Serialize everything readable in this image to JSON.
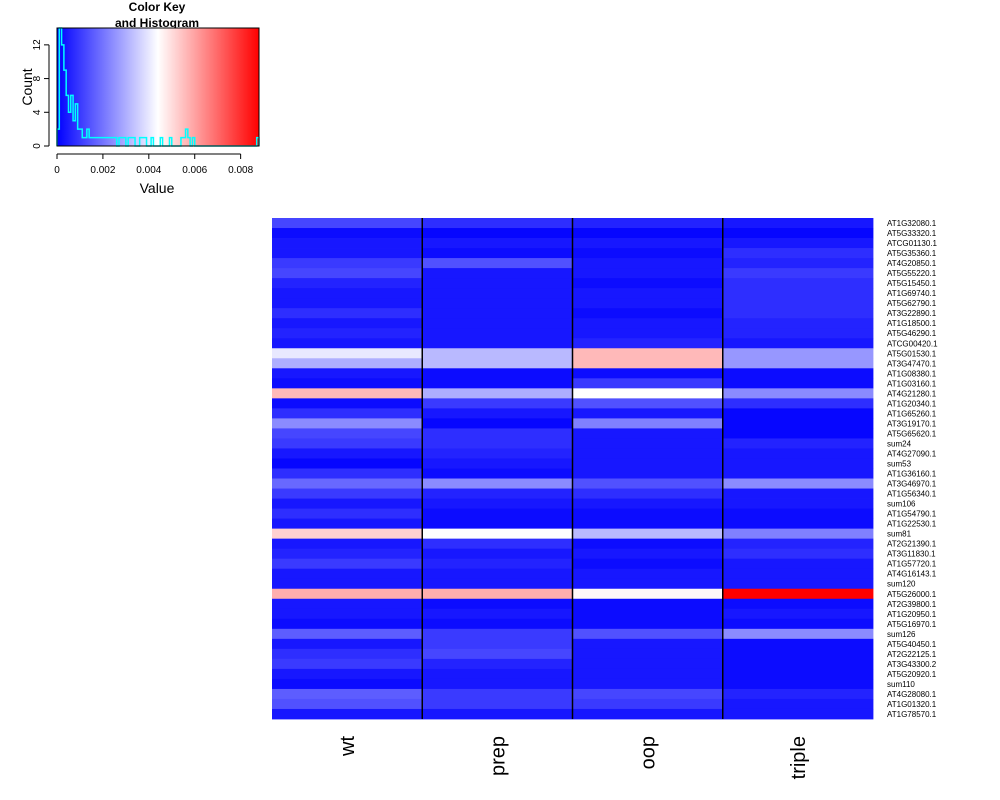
{
  "chart_data": {
    "type": "heatmap",
    "key": {
      "title_lines": [
        "Color Key",
        "and Histogram"
      ],
      "xlabel": "Value",
      "ylabel": "Count",
      "x_range": [
        0,
        0.0088
      ],
      "x_ticks": [
        0,
        0.002,
        0.004,
        0.006,
        0.008
      ],
      "x_tick_labels": [
        "0",
        "0.002",
        "0.004",
        "0.006",
        "0.008"
      ],
      "y_range": [
        0,
        14
      ],
      "y_ticks": [
        0,
        4,
        8,
        12
      ],
      "y_tick_labels": [
        "0",
        "4",
        "8",
        "12"
      ],
      "color_low": "#0000ff",
      "color_mid": "#ffffff",
      "color_high": "#ff0000",
      "histogram_color": "#00ffff",
      "histogram_heights": [
        2,
        14,
        12,
        9,
        6,
        4,
        6,
        3,
        5,
        2,
        2,
        1,
        1,
        2,
        1,
        1,
        1,
        1,
        1,
        1,
        1,
        1,
        1,
        1,
        1,
        1,
        0,
        1,
        1,
        1,
        0,
        1,
        1,
        1,
        0,
        0,
        1,
        1,
        1,
        0,
        0,
        1,
        0,
        0,
        0,
        1,
        0,
        0,
        0,
        1,
        0,
        0,
        0,
        0,
        1,
        1,
        2,
        1,
        0,
        1,
        0,
        0,
        0,
        0,
        0,
        0,
        0,
        0,
        0,
        0,
        0,
        0,
        0,
        0,
        0,
        0,
        0,
        0,
        0,
        0,
        0,
        0,
        0,
        0,
        0,
        0,
        0,
        1
      ]
    },
    "columns": [
      "wt",
      "prep",
      "oop",
      "triple"
    ],
    "rows": [
      "AT1G32080.1",
      "AT5G33320.1",
      "ATCG01130.1",
      "AT5G35360.1",
      "AT4G20850.1",
      "AT5G55220.1",
      "AT5G15450.1",
      "AT1G69740.1",
      "AT5G62790.1",
      "AT3G22890.1",
      "AT1G18500.1",
      "AT5G46290.1",
      "ATCG00420.1",
      "AT5G01530.1",
      "AT3G47470.1",
      "AT1G08380.1",
      "AT1G03160.1",
      "AT4G21280.1",
      "AT1G20340.1",
      "AT1G65260.1",
      "AT3G19170.1",
      "AT5G65620.1",
      "sum24",
      "AT4G27090.1",
      "sum53",
      "AT1G36160.1",
      "AT3G46970.1",
      "AT1G56340.1",
      "sum106",
      "AT1G54790.1",
      "AT1G22530.1",
      "sum81",
      "AT2G21390.1",
      "AT3G11830.1",
      "AT1G57720.1",
      "AT4G16143.1",
      "sum120",
      "AT5G26000.1",
      "AT2G39800.1",
      "AT1G20950.1",
      "AT5G16970.1",
      "sum126",
      "AT5G40450.1",
      "AT2G22125.1",
      "AT3G43300.2",
      "AT5G20920.1",
      "sum110",
      "AT4G28080.1",
      "AT1G01320.1",
      "AT1G78570.1"
    ],
    "value_range": [
      0,
      0.0088
    ],
    "values": [
      [
        0.0012,
        0.0008,
        0.0006,
        0.0004
      ],
      [
        0.0002,
        0.0001,
        0.0001,
        0.0001
      ],
      [
        0.0004,
        0.0004,
        0.0004,
        0.0004
      ],
      [
        0.0004,
        0.0002,
        0.0002,
        0.0008
      ],
      [
        0.001,
        0.0014,
        0.0004,
        0.0006
      ],
      [
        0.0012,
        0.0004,
        0.0004,
        0.001
      ],
      [
        0.0006,
        0.0004,
        0.0002,
        0.0008
      ],
      [
        0.0004,
        0.0004,
        0.0004,
        0.0008
      ],
      [
        0.0004,
        0.0004,
        0.0004,
        0.0008
      ],
      [
        0.0008,
        0.0004,
        0.0002,
        0.0008
      ],
      [
        0.0004,
        0.0004,
        0.0004,
        0.0006
      ],
      [
        0.0006,
        0.0004,
        0.0004,
        0.0006
      ],
      [
        0.0004,
        0.0004,
        0.0006,
        0.0004
      ],
      [
        0.004,
        0.0032,
        0.0056,
        0.0026
      ],
      [
        0.003,
        0.0032,
        0.0056,
        0.0026
      ],
      [
        0.0004,
        0.0002,
        0.0002,
        0.0002
      ],
      [
        0.0002,
        0.0002,
        0.001,
        0.0002
      ],
      [
        0.0056,
        0.003,
        0.0044,
        0.0024
      ],
      [
        0.0002,
        0.001,
        0.0014,
        0.0008
      ],
      [
        0.0008,
        0.0004,
        0.0004,
        0.0001
      ],
      [
        0.0024,
        0.0001,
        0.0022,
        0.0001
      ],
      [
        0.0012,
        0.0008,
        0.0004,
        0.0001
      ],
      [
        0.001,
        0.0008,
        0.0004,
        0.0006
      ],
      [
        0.0004,
        0.0006,
        0.0004,
        0.0004
      ],
      [
        0.0001,
        0.0004,
        0.0004,
        0.0004
      ],
      [
        0.0008,
        0.0002,
        0.0004,
        0.0004
      ],
      [
        0.0018,
        0.0024,
        0.0014,
        0.0024
      ],
      [
        0.001,
        0.0006,
        0.0008,
        0.0004
      ],
      [
        0.0004,
        0.0004,
        0.0004,
        0.0004
      ],
      [
        0.0008,
        0.0002,
        0.0002,
        0.0002
      ],
      [
        0.0004,
        0.0002,
        0.0002,
        0.0002
      ],
      [
        0.0052,
        0.0044,
        0.0032,
        0.0022
      ],
      [
        0.0004,
        0.0008,
        0.0002,
        0.0006
      ],
      [
        0.0006,
        0.0004,
        0.0004,
        0.0008
      ],
      [
        0.001,
        0.0006,
        0.0002,
        0.0004
      ],
      [
        0.0004,
        0.0004,
        0.0004,
        0.0004
      ],
      [
        0.0004,
        0.0004,
        0.0004,
        0.0004
      ],
      [
        0.0058,
        0.0058,
        0.0045,
        0.0088
      ],
      [
        0.0004,
        0.0002,
        0.0002,
        0.0002
      ],
      [
        0.0004,
        0.0004,
        0.0002,
        0.0004
      ],
      [
        0.0002,
        0.0002,
        0.0002,
        0.0002
      ],
      [
        0.0016,
        0.001,
        0.0014,
        0.0024
      ],
      [
        0.0004,
        0.001,
        0.0004,
        0.0002
      ],
      [
        0.0008,
        0.0012,
        0.0004,
        0.0002
      ],
      [
        0.001,
        0.0006,
        0.0004,
        0.0002
      ],
      [
        0.0004,
        0.0004,
        0.0004,
        0.0002
      ],
      [
        0.0002,
        0.0004,
        0.0004,
        0.0002
      ],
      [
        0.0016,
        0.001,
        0.0012,
        0.0006
      ],
      [
        0.0014,
        0.001,
        0.001,
        0.0004
      ],
      [
        0.0004,
        0.0004,
        0.0004,
        0.0004
      ]
    ],
    "column_separator_color": "#000000"
  }
}
